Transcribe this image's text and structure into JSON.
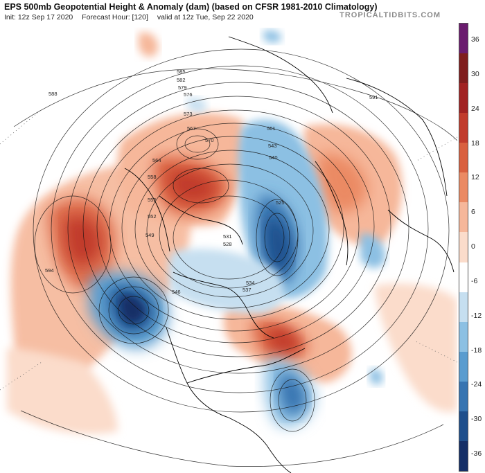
{
  "header": {
    "title": "EPS 500mb Geopotential Height & Anomaly (dam) (based on CFSR 1981-2010 Climatology)",
    "init": "Init: 12z Sep 17 2020",
    "forecast_hour": "Forecast Hour: [120]",
    "valid": "valid at 12z Tue, Sep 22 2020",
    "brand": "TROPICALTIDBITS.COM"
  },
  "colorbar": {
    "labels": [
      "36",
      "30",
      "24",
      "18",
      "12",
      "6",
      "0",
      "-6",
      "-12",
      "-18",
      "-24",
      "-30",
      "-36"
    ],
    "colors": [
      "#6a1b6e",
      "#7f1d1d",
      "#a12222",
      "#c13b2c",
      "#d9603f",
      "#eb8a63",
      "#f6b79a",
      "#fbdccb",
      "#ffffff",
      "#c6dff0",
      "#8cc0e3",
      "#5a9ccf",
      "#3774b1",
      "#1f4f8c",
      "#142e66"
    ]
  },
  "contour_labels": [
    "588",
    "585",
    "582",
    "579",
    "576",
    "573",
    "570",
    "567",
    "564",
    "561",
    "558",
    "555",
    "552",
    "549",
    "546",
    "543",
    "540",
    "537",
    "534",
    "531",
    "528",
    "525",
    "591",
    "594"
  ]
}
